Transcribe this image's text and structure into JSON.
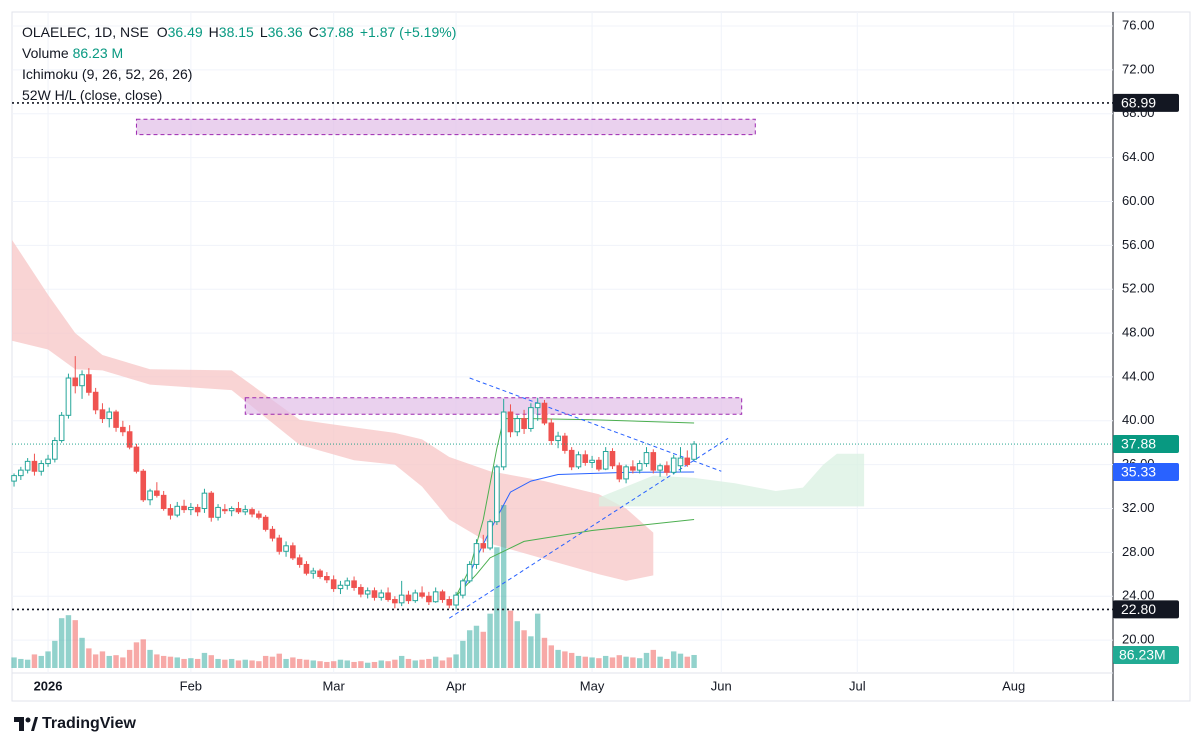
{
  "chart_data": {
    "type": "candlestick",
    "header": {
      "symbol": "OLAELEC, 1D, NSE",
      "ohlc": [
        {
          "key": "O",
          "value": "36.49"
        },
        {
          "key": "H",
          "value": "38.15"
        },
        {
          "key": "L",
          "value": "36.36"
        },
        {
          "key": "C",
          "value": "37.88"
        }
      ],
      "change": "+1.87 (+5.19%)",
      "volume_name": "Volume",
      "volume_value": "86.23 M",
      "indicators": [
        "Ichimoku (9, 26, 52, 26, 26)",
        "52W H/L (close, close)"
      ]
    },
    "xlim": [
      -0.3,
      161.6
    ],
    "ylim": [
      17,
      77.28
    ],
    "xticks": [
      {
        "value": 5,
        "label": "2026"
      },
      {
        "value": 26,
        "label": "Feb"
      },
      {
        "value": 47,
        "label": "Mar"
      },
      {
        "value": 65,
        "label": "Apr"
      },
      {
        "value": 85,
        "label": "May"
      },
      {
        "value": 104,
        "label": "Jun"
      },
      {
        "value": 124,
        "label": "Jul"
      },
      {
        "value": 147,
        "label": "Aug"
      }
    ],
    "yticks": [
      {
        "value": 20,
        "label": "20.00"
      },
      {
        "value": 24,
        "label": "24.00"
      },
      {
        "value": 28,
        "label": "28.00"
      },
      {
        "value": 32,
        "label": "32.00"
      },
      {
        "value": 36,
        "label": "36.00"
      },
      {
        "value": 40,
        "label": "40.00"
      },
      {
        "value": 44,
        "label": "44.00"
      },
      {
        "value": 48,
        "label": "48.00"
      },
      {
        "value": 52,
        "label": "52.00"
      },
      {
        "value": 56,
        "label": "56.00"
      },
      {
        "value": 60,
        "label": "60.00"
      },
      {
        "value": 64,
        "label": "64.00"
      },
      {
        "value": 68,
        "label": "68.00"
      },
      {
        "value": 72,
        "label": "72.00"
      },
      {
        "value": 76,
        "label": "76.00"
      }
    ],
    "grid": true,
    "colors": {
      "up": "#26a69a",
      "down": "#ef5350"
    },
    "open": [
      34.5,
      35.0,
      35.5,
      36.3,
      35.4,
      36.1,
      36.5,
      38.2,
      40.5,
      43.9,
      43.2,
      44.2,
      42.6,
      41.0,
      40.2,
      40.8,
      39.4,
      39.0,
      37.6,
      35.4,
      32.8,
      33.6,
      33.2,
      32.0,
      31.4,
      32.2,
      31.9,
      32.1,
      32.0,
      33.4,
      31.2,
      31.9,
      31.8,
      32.0,
      31.7,
      31.9,
      31.5,
      31.2,
      30.1,
      29.3,
      28.1,
      28.6,
      27.5,
      26.9,
      26.1,
      26.3,
      25.8,
      25.5,
      24.7,
      25.0,
      25.4,
      24.8,
      24.2,
      24.5,
      23.9,
      24.3,
      23.7,
      23.4,
      24.1,
      23.6,
      24.3,
      24.0,
      23.5,
      24.4,
      23.7,
      23.2,
      24.1,
      25.4,
      26.9,
      28.8,
      28.4,
      30.8,
      35.8,
      40.8,
      39.0,
      40.2,
      39.3,
      41.2,
      41.6,
      39.8,
      38.2,
      38.6,
      37.3,
      35.8,
      36.9,
      36.2,
      36.4,
      35.6,
      37.2,
      35.9,
      34.7,
      35.8,
      35.5,
      36.1,
      37.1,
      35.5,
      35.9,
      35.3,
      35.9,
      36.6,
      36.49
    ],
    "high": [
      35.2,
      35.8,
      36.6,
      37.0,
      36.4,
      36.9,
      38.5,
      40.8,
      44.3,
      45.9,
      44.6,
      44.8,
      43.0,
      41.6,
      41.2,
      41.0,
      40.0,
      39.6,
      37.9,
      35.6,
      33.8,
      34.4,
      33.6,
      32.4,
      32.6,
      32.8,
      32.5,
      32.4,
      33.8,
      33.6,
      32.4,
      32.4,
      32.2,
      32.6,
      32.3,
      32.1,
      31.8,
      31.4,
      30.4,
      29.6,
      29.0,
      28.9,
      27.8,
      27.2,
      26.6,
      26.5,
      26.2,
      25.9,
      25.4,
      25.7,
      25.8,
      25.1,
      24.8,
      24.8,
      24.6,
      24.8,
      24.0,
      25.4,
      24.5,
      24.6,
      24.9,
      24.4,
      24.8,
      24.6,
      24.0,
      24.4,
      25.6,
      27.2,
      29.2,
      29.6,
      31.0,
      36.0,
      42.0,
      41.5,
      40.5,
      41.0,
      41.6,
      42.1,
      41.9,
      40.2,
      39.0,
      38.9,
      37.6,
      37.2,
      37.3,
      36.8,
      36.7,
      37.6,
      37.5,
      36.2,
      36.0,
      36.4,
      36.4,
      37.6,
      37.4,
      36.1,
      36.3,
      36.9,
      37.6,
      37.3,
      38.15
    ],
    "low": [
      34.0,
      34.6,
      35.2,
      35.0,
      35.0,
      35.8,
      36.2,
      38.0,
      40.2,
      42.5,
      42.0,
      42.3,
      40.6,
      39.8,
      39.4,
      39.0,
      38.6,
      37.4,
      35.2,
      32.6,
      32.3,
      33.0,
      31.8,
      31.0,
      31.2,
      31.6,
      31.4,
      31.3,
      31.6,
      30.8,
      30.9,
      31.5,
      31.3,
      31.5,
      31.4,
      31.2,
      31.0,
      29.9,
      29.0,
      27.8,
      27.6,
      27.3,
      26.6,
      25.9,
      25.6,
      25.6,
      25.2,
      24.4,
      24.2,
      24.6,
      24.5,
      23.9,
      23.8,
      23.6,
      23.6,
      23.5,
      22.9,
      23.1,
      23.3,
      23.4,
      23.8,
      23.2,
      23.4,
      23.4,
      22.9,
      22.8,
      23.8,
      25.2,
      26.5,
      28.0,
      28.2,
      30.5,
      35.5,
      38.5,
      38.6,
      38.8,
      39.0,
      40.0,
      39.6,
      37.8,
      37.5,
      37.0,
      35.5,
      35.6,
      35.9,
      35.7,
      35.4,
      35.5,
      35.6,
      34.4,
      34.3,
      35.2,
      35.2,
      35.8,
      35.2,
      34.9,
      35.0,
      35.1,
      35.3,
      35.8,
      36.36
    ],
    "close": [
      35.0,
      35.5,
      36.3,
      35.4,
      36.1,
      36.5,
      38.2,
      40.5,
      43.9,
      43.2,
      44.2,
      42.6,
      41.0,
      40.2,
      40.8,
      39.4,
      39.0,
      37.6,
      35.4,
      32.8,
      33.6,
      33.2,
      32.0,
      31.4,
      32.2,
      31.9,
      32.1,
      31.7,
      33.4,
      31.2,
      32.1,
      31.8,
      32.0,
      31.7,
      31.9,
      31.5,
      31.2,
      30.1,
      29.3,
      28.1,
      28.6,
      27.5,
      26.9,
      26.1,
      26.3,
      25.8,
      25.5,
      24.7,
      25.0,
      25.4,
      24.8,
      24.2,
      24.5,
      23.9,
      24.3,
      23.7,
      23.4,
      24.1,
      23.6,
      24.3,
      24.0,
      23.5,
      24.4,
      23.7,
      23.2,
      24.1,
      25.4,
      26.9,
      28.8,
      28.4,
      30.8,
      35.8,
      40.8,
      39.0,
      40.2,
      39.3,
      41.2,
      41.6,
      39.8,
      38.2,
      38.6,
      37.3,
      35.8,
      36.9,
      36.2,
      36.4,
      35.6,
      37.2,
      35.9,
      34.7,
      35.8,
      35.5,
      36.1,
      37.1,
      35.5,
      35.9,
      35.3,
      36.6,
      36.6,
      36.01,
      37.88
    ],
    "volume": [
      70,
      60,
      55,
      90,
      80,
      110,
      180,
      330,
      350,
      317,
      200,
      130,
      90,
      110,
      80,
      85,
      70,
      120,
      170,
      190,
      120,
      90,
      80,
      75,
      70,
      60,
      65,
      60,
      100,
      85,
      60,
      55,
      60,
      50,
      55,
      50,
      45,
      80,
      75,
      95,
      60,
      70,
      60,
      55,
      50,
      45,
      40,
      45,
      55,
      50,
      40,
      45,
      35,
      40,
      50,
      45,
      55,
      80,
      60,
      50,
      55,
      60,
      75,
      50,
      70,
      90,
      180,
      250,
      280,
      240,
      360,
      800,
      1080,
      380,
      310,
      250,
      210,
      360,
      200,
      150,
      120,
      110,
      100,
      80,
      75,
      70,
      65,
      80,
      70,
      85,
      75,
      70,
      65,
      100,
      120,
      75,
      60,
      110,
      95,
      75,
      86.23
    ],
    "volume_badge": {
      "value": 86.23,
      "label": "86.23M",
      "color": "#22ab94"
    },
    "price_lines": [
      {
        "value": 68.99,
        "color": "#131722",
        "style": "dotted"
      },
      {
        "value": 37.88,
        "color": "#089981",
        "style": "dotted"
      },
      {
        "value": 35.33,
        "color": "#2962ff",
        "style": "none"
      },
      {
        "value": 22.8,
        "label": "22.80",
        "color": "#131722",
        "style": "dotted"
      }
    ],
    "clouds": [
      {
        "color": "#f7c5c5",
        "x": [
          -0.3,
          5,
          9,
          13,
          20,
          32,
          42,
          50,
          56,
          60,
          64,
          70,
          78,
          86,
          90,
          94
        ],
        "top": [
          56.5,
          51.5,
          48,
          46,
          44.7,
          44.6,
          40.1,
          39.4,
          38.9,
          38.3,
          36.7,
          35.4,
          34.5,
          33.3,
          32,
          29.8
        ],
        "bottom": [
          47.3,
          46.5,
          44.7,
          44.6,
          43.3,
          42.8,
          37.8,
          36.4,
          36.0,
          34.0,
          31.0,
          28.8,
          27.4,
          26.0,
          25.4,
          25.9
        ]
      },
      {
        "color": "#d9f0e1",
        "x": [
          86,
          94,
          100,
          106,
          112,
          116,
          119,
          121,
          125
        ],
        "top": [
          33.0,
          35.0,
          34.8,
          34.3,
          33.6,
          33.9,
          36.0,
          37.0,
          37.0
        ],
        "bottom": [
          32.2,
          32.2,
          32.2,
          32.2,
          32.2,
          32.2,
          32.2,
          32.2,
          32.2
        ]
      }
    ],
    "lines": [
      {
        "color": "#2962ff",
        "x": [
          66,
          68,
          70,
          73,
          76,
          80,
          90,
          100
        ],
        "y": [
          24.5,
          27.5,
          30.0,
          33.5,
          34.5,
          35.1,
          35.3,
          35.33
        ]
      },
      {
        "color": "#4caf50",
        "x": [
          72,
          76,
          85,
          100
        ],
        "y": [
          40.2,
          40.2,
          40.1,
          39.8
        ]
      },
      {
        "color": "#4caf50",
        "x": [
          65,
          68,
          70,
          75,
          85,
          100
        ],
        "y": [
          24.0,
          26.0,
          27.5,
          29.0,
          30.0,
          31.0
        ]
      },
      {
        "color": "#4caf50",
        "x": [
          65,
          67,
          69,
          71,
          72
        ],
        "y": [
          24.0,
          26.5,
          31.0,
          37.5,
          40.2
        ]
      }
    ],
    "zones": [
      {
        "x": [
          18,
          109
        ],
        "y": [
          66.1,
          67.5
        ]
      },
      {
        "x": [
          34,
          107
        ],
        "y": [
          40.6,
          42.1
        ]
      }
    ],
    "trendlines": [
      {
        "x": [
          67,
          104
        ],
        "y": [
          43.9,
          35.4
        ]
      },
      {
        "x": [
          64,
          105
        ],
        "y": [
          22.0,
          38.4
        ]
      }
    ],
    "brand": "TradingView"
  }
}
